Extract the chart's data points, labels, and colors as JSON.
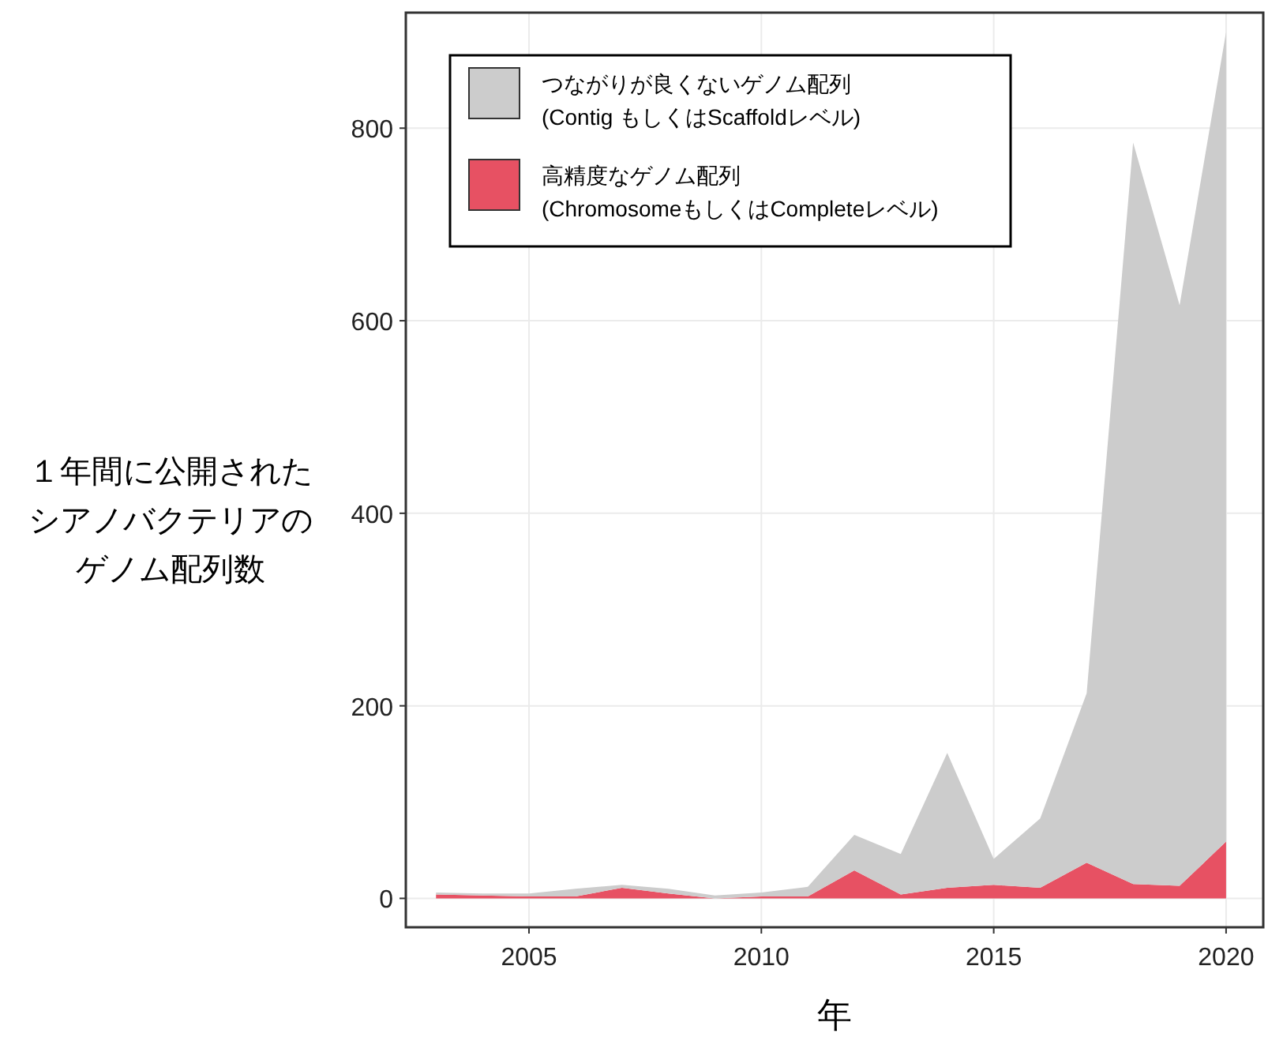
{
  "chart_data": {
    "type": "area",
    "stacked": true,
    "xlabel": "年",
    "ylabel": "１年間に公開されたシアノバクテリアのゲノム配列数",
    "x": [
      2003,
      2004,
      2005,
      2006,
      2007,
      2008,
      2009,
      2010,
      2011,
      2012,
      2013,
      2014,
      2015,
      2016,
      2017,
      2018,
      2019,
      2020
    ],
    "series": [
      {
        "name": "高精度なゲノム配列\n(ChromosomeもしくはCompleteレベル)",
        "color": "#e75163",
        "values": [
          4,
          3,
          2,
          2,
          11,
          5,
          0,
          2,
          2,
          29,
          4,
          11,
          14,
          11,
          37,
          15,
          13,
          59
        ]
      },
      {
        "name": "つながりが良くないゲノム配列\n(Contig もしくはScaffoldレベル)",
        "color": "#cccccc",
        "values": [
          2,
          2,
          3,
          8,
          3,
          5,
          3,
          4,
          10,
          37,
          42,
          140,
          27,
          72,
          176,
          770,
          603,
          841
        ]
      }
    ],
    "xlim": [
      2002.35,
      2020.8
    ],
    "ylim": [
      -30,
      920
    ],
    "xticks": [
      2005,
      2010,
      2015,
      2020
    ],
    "yticks": [
      0,
      200,
      400,
      600,
      800
    ],
    "grid": true,
    "legend": "top left"
  }
}
